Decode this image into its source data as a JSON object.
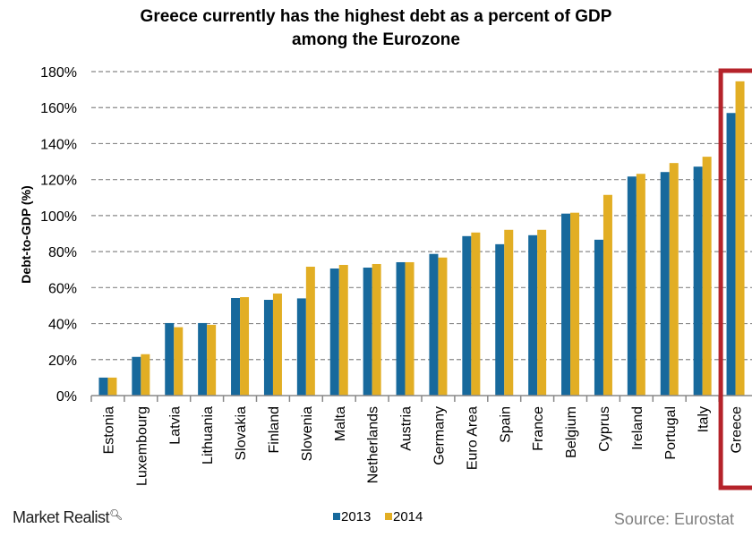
{
  "chart_data": {
    "type": "bar",
    "title": [
      "Greece currently has the highest debt as a percent of GDP",
      "among the Eurozone"
    ],
    "ylabel": "Debt-to-GDP (%)",
    "xlabel": "",
    "ylim": [
      0,
      180
    ],
    "yticks": [
      "0%",
      "20%",
      "40%",
      "60%",
      "80%",
      "100%",
      "120%",
      "140%",
      "160%",
      "180%"
    ],
    "grid": true,
    "legend_position": "bottom",
    "categories": [
      "Estonia",
      "Luxembourg",
      "Latvia",
      "Lithuania",
      "Slovakia",
      "Finland",
      "Slovenia",
      "Malta",
      "Netherlands",
      "Austria",
      "Germany",
      "Euro Area",
      "Spain",
      "France",
      "Belgium",
      "Cyprus",
      "Ireland",
      "Portugal",
      "Italy",
      "Greece"
    ],
    "series": [
      {
        "name": "2013",
        "color": "#17699c",
        "values": [
          10,
          21.5,
          40.3,
          40.3,
          54.2,
          53.2,
          54,
          70.6,
          71.1,
          74.1,
          78.7,
          88.6,
          84.1,
          89.1,
          101.1,
          86.6,
          121.7,
          124.2,
          127.2,
          157
        ]
      },
      {
        "name": "2014",
        "color": "#e2ae24",
        "values": [
          10,
          23,
          38,
          39.3,
          54.7,
          56.7,
          71.6,
          72.6,
          73.1,
          74.1,
          76.7,
          90.6,
          92.1,
          92.1,
          101.6,
          111.5,
          123.2,
          129.2,
          132.7,
          174.6
        ]
      }
    ],
    "highlight": {
      "category": "Greece",
      "color": "#b5232a"
    }
  },
  "branding": {
    "logo": "Market Realist"
  },
  "source": "Source: Eurostat"
}
